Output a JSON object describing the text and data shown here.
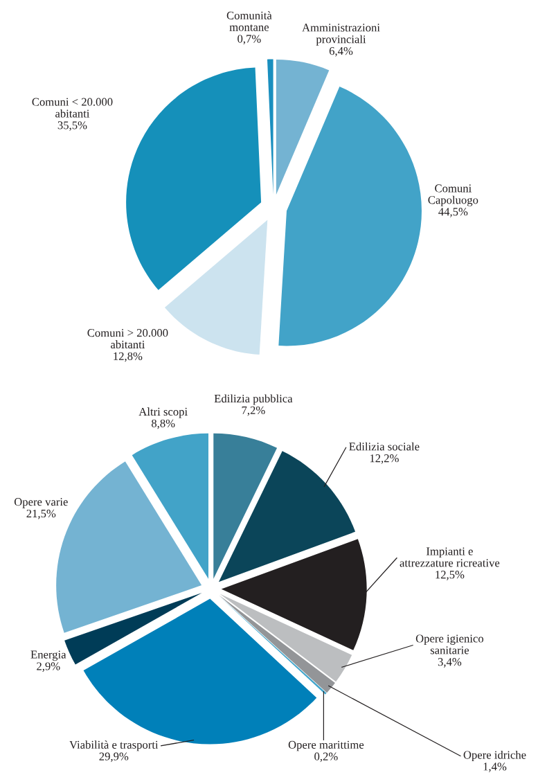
{
  "chart_data": [
    {
      "type": "pie",
      "categories": [
        "Amministrazioni\nprovinciali",
        "Comuni\nCapoluogo",
        "Comuni > 20.000\nabitanti",
        "Comuni < 20.000\nabitanti",
        "Comunità\nmontane"
      ],
      "values": [
        6.4,
        44.5,
        12.8,
        35.5,
        0.7
      ],
      "value_labels": [
        "6,4%",
        "44,5%",
        "12,8%",
        "35,5%",
        "0,7%"
      ],
      "colors": [
        "#74b3d2",
        "#42a3c8",
        "#cce3ef",
        "#1590ba",
        "#1a8fbf"
      ]
    },
    {
      "type": "pie",
      "categories": [
        "Edilizia pubblica",
        "Edilizia sociale",
        "Impianti e\nattrezzature ricreative",
        "Opere igienico\nsanitarie",
        "Opere idriche",
        "Opere marittime",
        "Viabilità e trasporti",
        "Energia",
        "Opere varie",
        "Altri scopi"
      ],
      "values": [
        7.2,
        12.2,
        12.5,
        3.4,
        1.4,
        0.2,
        29.9,
        2.9,
        21.5,
        8.8
      ],
      "value_labels": [
        "7,2%",
        "12,2%",
        "12,5%",
        "3,4%",
        "1,4%",
        "0,2%",
        "29,9%",
        "2,9%",
        "21,5%",
        "8,8%"
      ],
      "colors": [
        "#387f99",
        "#0b4559",
        "#231f20",
        "#bcbec0",
        "#939598",
        "#41a5cc",
        "#0080b9",
        "#003c57",
        "#74b3d2",
        "#42a3c8"
      ]
    }
  ]
}
